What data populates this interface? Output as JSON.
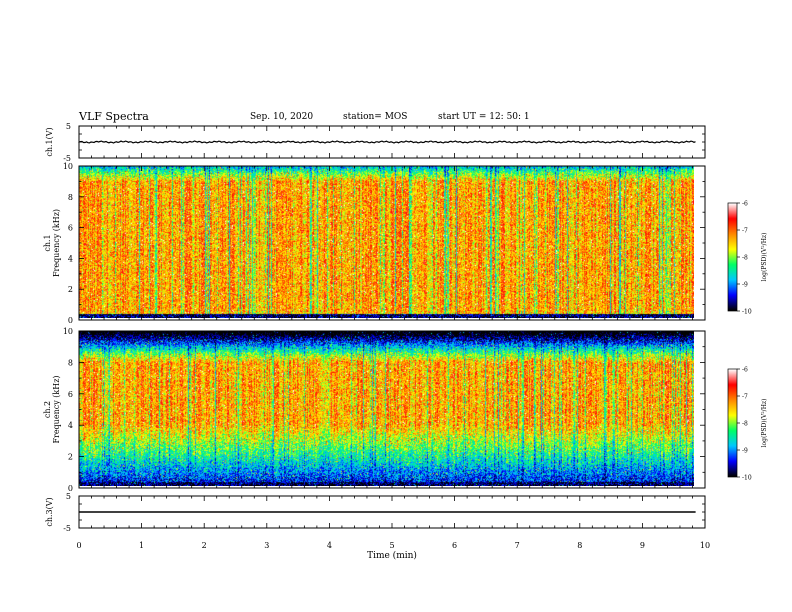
{
  "header": {
    "title": "VLF Spectra",
    "date": "Sep. 10, 2020",
    "station": "station= MOS",
    "start_ut": "start  UT  =   12: 50: 1"
  },
  "chart_data": [
    {
      "type": "line",
      "panel": "ch1-voltage",
      "ylabel": "ch.1(V)",
      "y_ticks": [
        "5",
        "-5"
      ],
      "ylim": [
        -5,
        5
      ],
      "x": [
        0,
        9.85
      ],
      "values": [
        0,
        0
      ]
    },
    {
      "type": "heatmap",
      "panel": "ch1-spectrogram",
      "ylabel_line1": "ch.1",
      "ylabel_line2": "Frequency  (kHz)",
      "y_ticks": [
        "0",
        "2",
        "4",
        "6",
        "8",
        "10"
      ],
      "ylim": [
        0,
        10
      ],
      "xlim": [
        0,
        9.85
      ],
      "z_range": [
        -10,
        -6
      ],
      "dominant_band_khz": [
        0.5,
        9
      ]
    },
    {
      "type": "heatmap",
      "panel": "ch2-spectrogram",
      "ylabel_line1": "ch.2",
      "ylabel_line2": "Frequency  (kHz)",
      "y_ticks": [
        "0",
        "2",
        "4",
        "6",
        "8",
        "10"
      ],
      "ylim": [
        0,
        10
      ],
      "xlim": [
        0,
        9.85
      ],
      "z_range": [
        -10,
        -6
      ],
      "dominant_band_khz": [
        4,
        8
      ]
    },
    {
      "type": "line",
      "panel": "ch3-voltage",
      "ylabel": "ch.3(V)",
      "y_ticks": [
        "5",
        "-5"
      ],
      "ylim": [
        -5,
        5
      ],
      "x": [
        0,
        9.85
      ],
      "values": [
        0,
        0
      ]
    }
  ],
  "xaxis": {
    "label": "Time  (min)",
    "ticks": [
      "0",
      "1",
      "2",
      "3",
      "4",
      "5",
      "6",
      "7",
      "8",
      "9",
      "10"
    ],
    "xlim": [
      0,
      10
    ]
  },
  "colorbar": {
    "label": "log(PSD)(V²/Hz)",
    "ticks": [
      "-6",
      "-7",
      "-8",
      "-9",
      "-10"
    ],
    "range": [
      -10,
      -6
    ],
    "colors": [
      "#000000",
      "#0000ff",
      "#00c8ff",
      "#00ff66",
      "#ffff00",
      "#ff8800",
      "#ff0000",
      "#ffffff"
    ]
  }
}
